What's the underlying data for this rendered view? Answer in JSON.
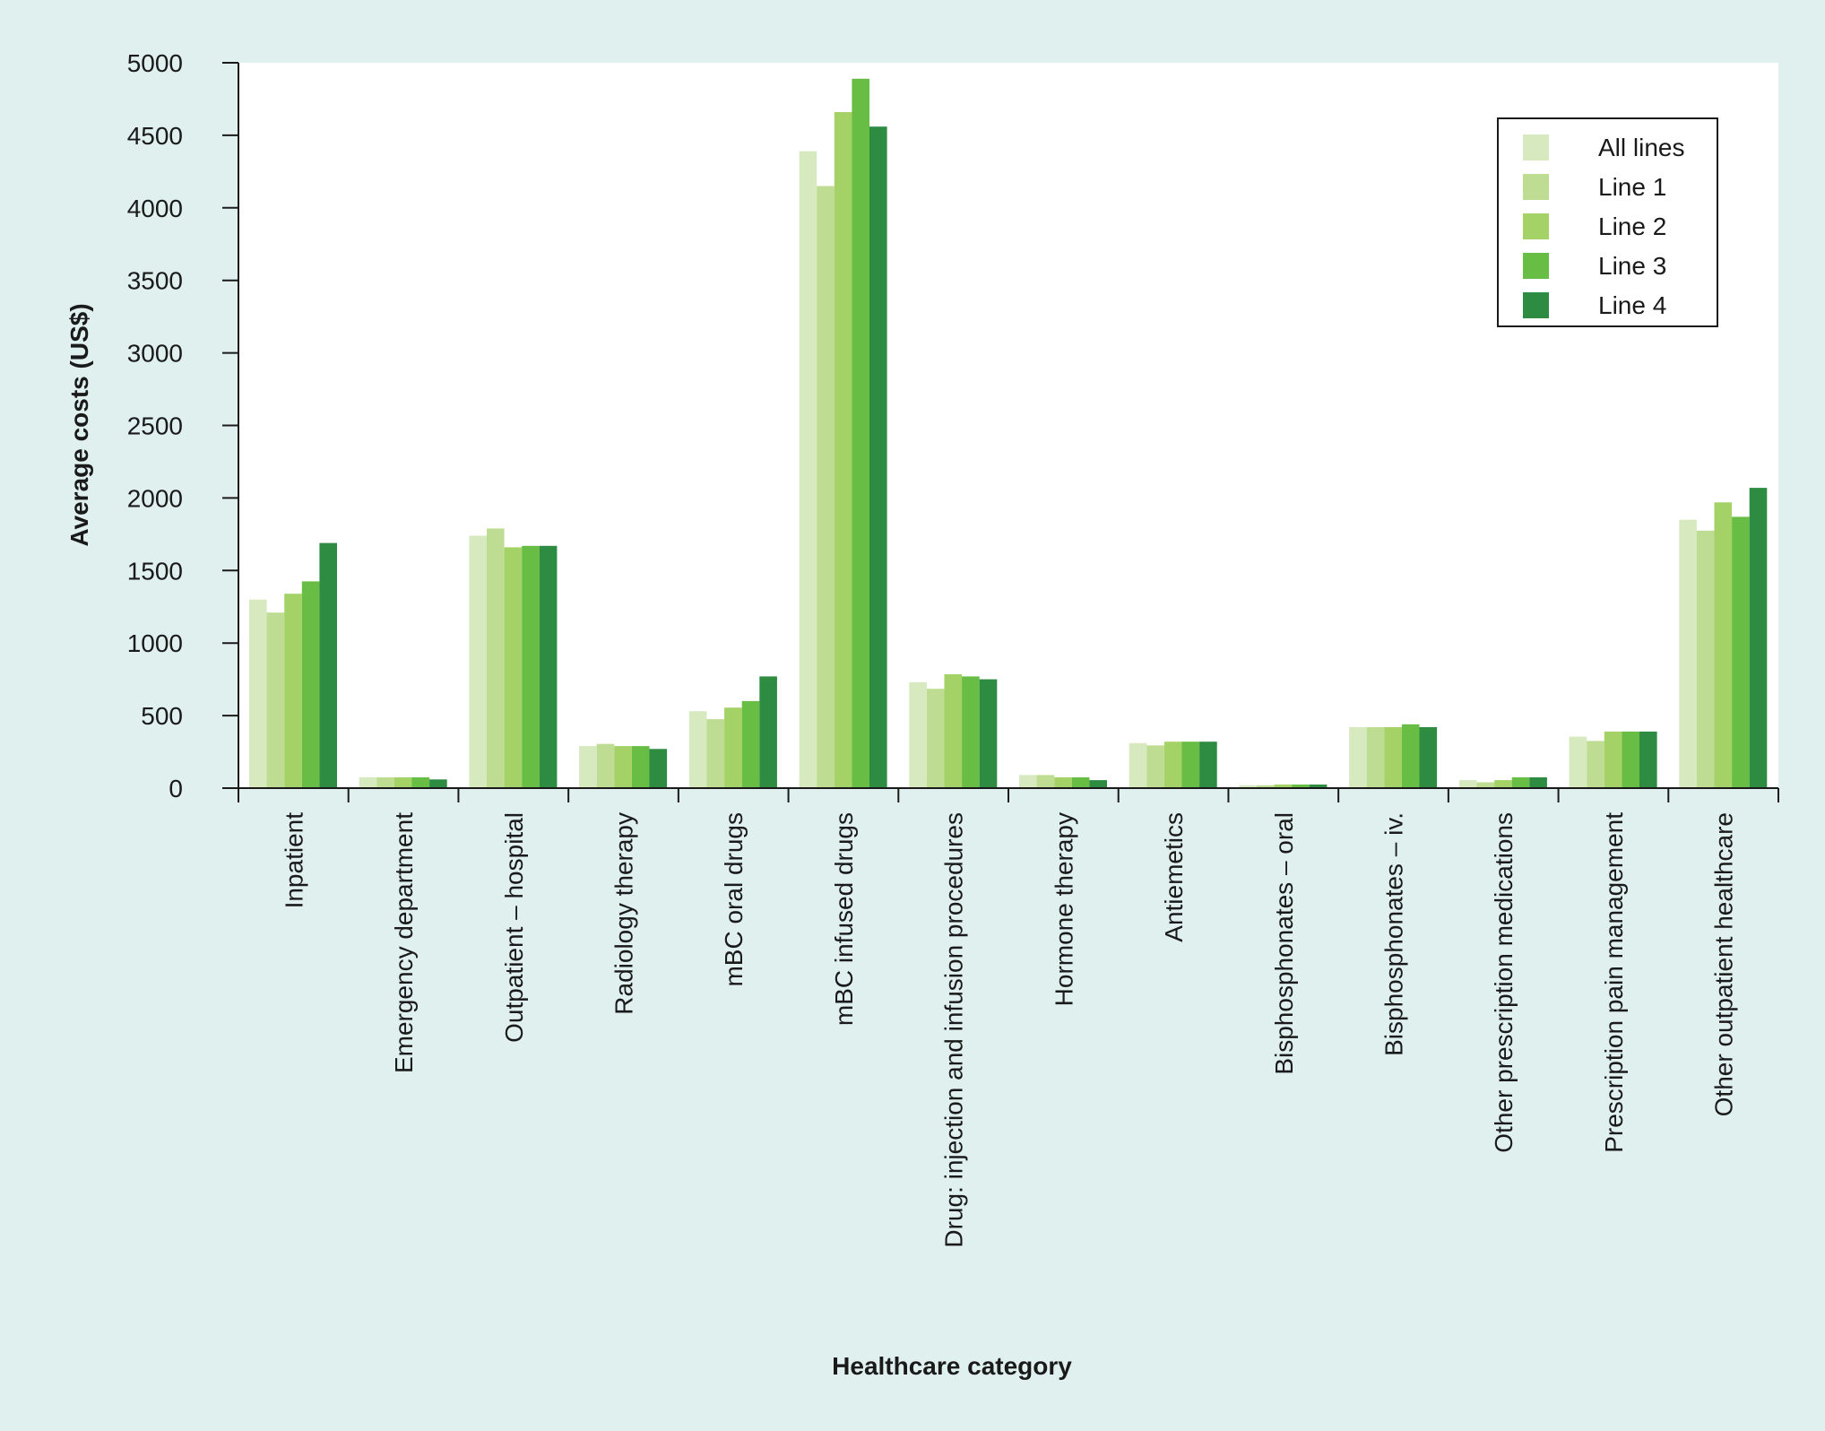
{
  "chart_data": {
    "type": "bar",
    "xlabel": "Healthcare category",
    "ylabel": "Average costs (US$)",
    "ylim": [
      0,
      5000
    ],
    "yticks": [
      0,
      500,
      1000,
      1500,
      2000,
      2500,
      3000,
      3500,
      4000,
      4500,
      5000
    ],
    "grid": false,
    "legend_position": "top-right",
    "categories": [
      "Inpatient",
      "Emergency department",
      "Outpatient – hospital",
      "Radiology therapy",
      "mBC oral drugs",
      "mBC infused drugs",
      "Drug: injection and infusion procedures",
      "Hormone therapy",
      "Antiemetics",
      "Bisphosphonates – oral",
      "Bisphosphonates – iv.",
      "Other prescription medications",
      "Prescription pain management",
      "Other outpatient healthcare"
    ],
    "series": [
      {
        "name": "All lines",
        "color": "#d6e9bf",
        "values": [
          1300,
          75,
          1740,
          290,
          530,
          4390,
          730,
          90,
          310,
          20,
          420,
          55,
          355,
          1850
        ]
      },
      {
        "name": "Line 1",
        "color": "#bedd92",
        "values": [
          1210,
          75,
          1790,
          305,
          475,
          4150,
          685,
          90,
          295,
          20,
          420,
          40,
          325,
          1775
        ]
      },
      {
        "name": "Line 2",
        "color": "#a4d267",
        "values": [
          1340,
          75,
          1660,
          290,
          555,
          4660,
          785,
          75,
          320,
          25,
          420,
          55,
          390,
          1970
        ]
      },
      {
        "name": "Line 3",
        "color": "#68bd45",
        "values": [
          1425,
          75,
          1670,
          290,
          600,
          4890,
          770,
          75,
          320,
          25,
          440,
          75,
          390,
          1870
        ]
      },
      {
        "name": "Line 4",
        "color": "#2e8b42",
        "values": [
          1690,
          60,
          1670,
          270,
          770,
          4560,
          750,
          55,
          320,
          25,
          420,
          75,
          390,
          2070
        ]
      }
    ]
  },
  "colors": {
    "page_background": "#dff0ee",
    "plot_background": "#ffffff"
  }
}
